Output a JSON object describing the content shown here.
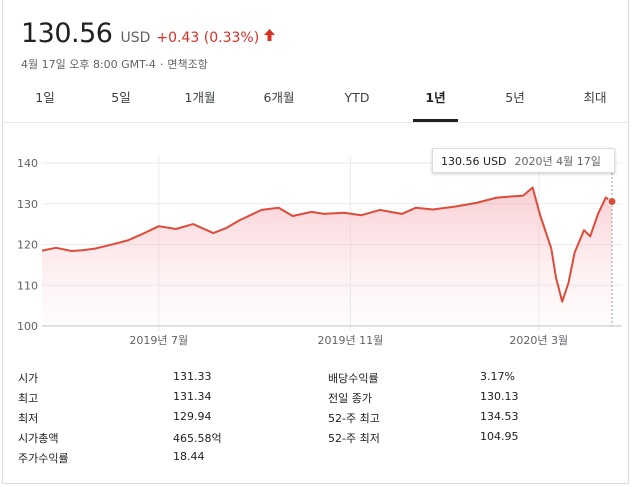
{
  "quote": {
    "price": "130.56",
    "currency": "USD",
    "change": "+0.43 (0.33%)",
    "arrow_icon": "arrow-up",
    "timestamp": "4월 17일 오후 8:00 GMT-4",
    "disclaimer": "면책조항"
  },
  "tabs": [
    {
      "label": "1일",
      "active": false
    },
    {
      "label": "5일",
      "active": false
    },
    {
      "label": "1개월",
      "active": false
    },
    {
      "label": "6개월",
      "active": false
    },
    {
      "label": "YTD",
      "active": false
    },
    {
      "label": "1년",
      "active": true
    },
    {
      "label": "5년",
      "active": false
    },
    {
      "label": "최대",
      "active": false
    }
  ],
  "tooltip": {
    "price": "130.56 USD",
    "date": "2020년 4월 17일"
  },
  "colors": {
    "line": "#dd4b39",
    "positive": "#d93025",
    "fill": "#fbe3e6"
  },
  "chart_data": {
    "type": "area",
    "ylim": [
      100,
      140
    ],
    "yticks": [
      "140",
      "130",
      "120",
      "110",
      "100"
    ],
    "xtick_labels": [
      "2019년 7월",
      "2019년 11월",
      "2020년 3월"
    ],
    "grid": true,
    "x": [
      "2019-04-17",
      "2019-04-26",
      "2019-05-06",
      "2019-05-13",
      "2019-05-21",
      "2019-06-03",
      "2019-06-11",
      "2019-06-20",
      "2019-07-01",
      "2019-07-12",
      "2019-07-23",
      "2019-08-05",
      "2019-08-13",
      "2019-08-22",
      "2019-09-05",
      "2019-09-16",
      "2019-09-25",
      "2019-10-07",
      "2019-10-15",
      "2019-10-28",
      "2019-11-08",
      "2019-11-20",
      "2019-12-04",
      "2019-12-13",
      "2019-12-24",
      "2020-01-07",
      "2020-01-21",
      "2020-02-03",
      "2020-02-13",
      "2020-02-20",
      "2020-02-26",
      "2020-03-02",
      "2020-03-09",
      "2020-03-12",
      "2020-03-16",
      "2020-03-20",
      "2020-03-24",
      "2020-03-30",
      "2020-04-03",
      "2020-04-08",
      "2020-04-13",
      "2020-04-17"
    ],
    "values": [
      118.5,
      119.2,
      118.4,
      118.6,
      119.0,
      120.2,
      121.0,
      122.5,
      124.5,
      123.8,
      125.0,
      122.8,
      124.0,
      126.0,
      128.5,
      129.0,
      127.0,
      128.0,
      127.5,
      127.8,
      127.2,
      128.5,
      127.5,
      129.0,
      128.6,
      129.3,
      130.2,
      131.5,
      131.8,
      132.0,
      134.0,
      127.0,
      119.0,
      112.0,
      106.0,
      110.5,
      118.0,
      123.5,
      122.0,
      127.5,
      131.5,
      130.56
    ]
  },
  "stats": [
    {
      "label": "시가",
      "value": "131.33"
    },
    {
      "label": "최고",
      "value": "131.34"
    },
    {
      "label": "최저",
      "value": "129.94"
    },
    {
      "label": "시가총액",
      "value": "465.58억"
    },
    {
      "label": "주가수익률",
      "value": "18.44"
    },
    {
      "label": "배당수익률",
      "value": "3.17%"
    },
    {
      "label": "전일 종가",
      "value": "130.13"
    },
    {
      "label": "52-주 최고",
      "value": "134.53"
    },
    {
      "label": "52-주 최저",
      "value": "104.95"
    }
  ]
}
